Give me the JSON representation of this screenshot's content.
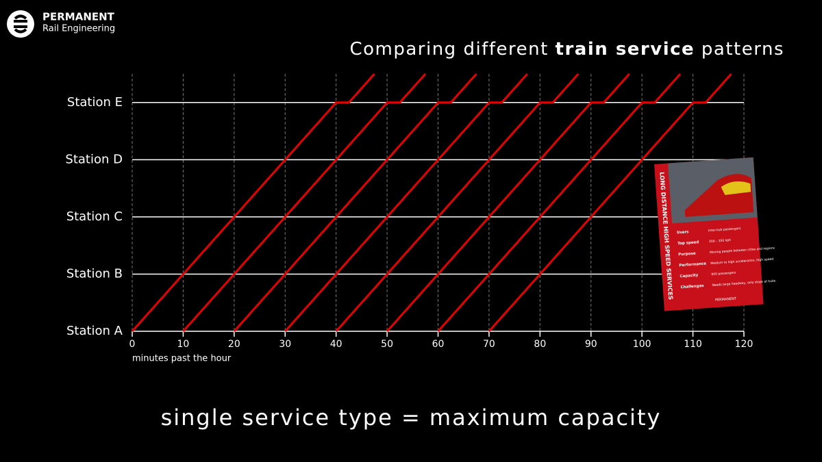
{
  "logo": {
    "name": "PERMANENT",
    "subtitle": "Rail Engineering"
  },
  "chart_data": {
    "type": "line",
    "title": {
      "before": "Comparing different ",
      "bold": "train service",
      "after": " patterns"
    },
    "xlabel": "minutes past the hour",
    "xlim": [
      0,
      120
    ],
    "xticks": [
      0,
      10,
      20,
      30,
      40,
      50,
      60,
      70,
      80,
      90,
      100,
      110,
      120
    ],
    "ylim": [
      0,
      4.5
    ],
    "yticks": [
      {
        "value": 0,
        "label": "Station A"
      },
      {
        "value": 1,
        "label": "Station B"
      },
      {
        "value": 2,
        "label": "Station C"
      },
      {
        "value": 3,
        "label": "Station D"
      },
      {
        "value": 4,
        "label": "Station E"
      }
    ],
    "grid": true,
    "series": [
      {
        "color": "#e60000",
        "x": [
          0,
          10,
          20,
          30,
          40,
          42.5,
          47.5
        ],
        "y": [
          0,
          1,
          2,
          3,
          4,
          4,
          4.5
        ]
      },
      {
        "color": "#e60000",
        "x": [
          10,
          20,
          30,
          40,
          50,
          52.5,
          57.5
        ],
        "y": [
          0,
          1,
          2,
          3,
          4,
          4,
          4.5
        ]
      },
      {
        "color": "#e60000",
        "x": [
          20,
          30,
          40,
          50,
          60,
          62.5,
          67.5
        ],
        "y": [
          0,
          1,
          2,
          3,
          4,
          4,
          4.5
        ]
      },
      {
        "color": "#e60000",
        "x": [
          30,
          40,
          50,
          60,
          70,
          72.5,
          77.5
        ],
        "y": [
          0,
          1,
          2,
          3,
          4,
          4,
          4.5
        ]
      },
      {
        "color": "#e60000",
        "x": [
          40,
          50,
          60,
          70,
          80,
          82.5,
          87.5
        ],
        "y": [
          0,
          1,
          2,
          3,
          4,
          4,
          4.5
        ]
      },
      {
        "color": "#e60000",
        "x": [
          50,
          60,
          70,
          80,
          90,
          92.5,
          97.5
        ],
        "y": [
          0,
          1,
          2,
          3,
          4,
          4,
          4.5
        ]
      },
      {
        "color": "#e60000",
        "x": [
          60,
          70,
          80,
          90,
          100,
          102.5,
          107.5
        ],
        "y": [
          0,
          1,
          2,
          3,
          4,
          4,
          4.5
        ]
      },
      {
        "color": "#e60000",
        "x": [
          70,
          80,
          90,
          100,
          110,
          112.5,
          117.5
        ],
        "y": [
          0,
          1,
          2,
          3,
          4,
          4,
          4.5
        ]
      }
    ]
  },
  "card": {
    "title": "LONG DISTANCE HIGH SPEED SERVICES",
    "rows": [
      [
        "Users",
        "Inter-hub passengers"
      ],
      [
        "Top speed",
        "200 – 350 kph"
      ],
      [
        "Purpose",
        "Moving people between cities and regions"
      ],
      [
        "Performance",
        "Medium to high acceleration, high speed"
      ],
      [
        "Capacity",
        "800 passengers"
      ],
      [
        "Challenges",
        "Needs large headway, only stops at hubs"
      ]
    ],
    "brand": "PERMANENT"
  },
  "footer": "single service type = maximum capacity"
}
